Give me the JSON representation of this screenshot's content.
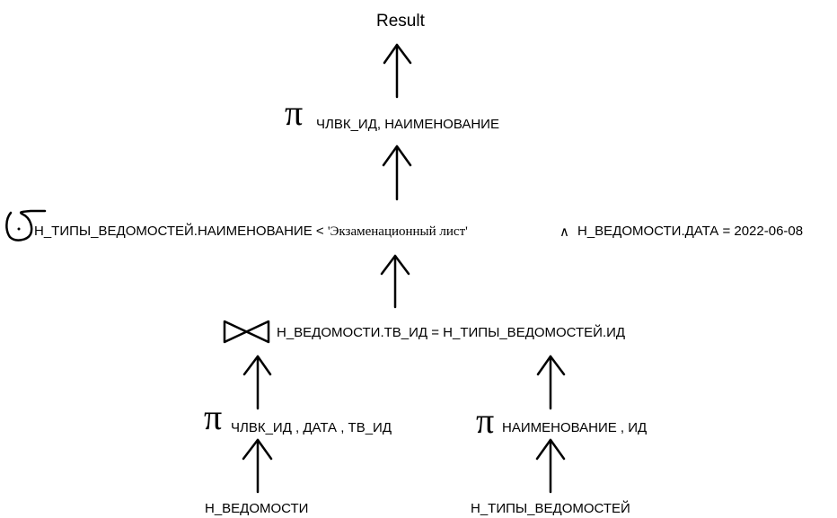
{
  "diagram": {
    "result": {
      "label": "Result"
    },
    "projection_top": {
      "symbol": "π",
      "attributes": "ЧЛВК_ИД, НАИМЕНОВАНИЕ"
    },
    "selection": {
      "symbol_name": "sigma-icon",
      "left_condition": "Н_ТИПЫ_ВЕДОМОСТЕЙ.НАИМЕНОВАНИЕ < 'Экзаменационный лист'",
      "operator": "∧",
      "right_condition": "Н_ВЕДОМОСТИ.ДАТА = 2022-06-08"
    },
    "join": {
      "symbol_name": "bowtie-join-icon",
      "condition": "Н_ВЕДОМОСТИ.ТВ_ИД = Н_ТИПЫ_ВЕДОМОСТЕЙ.ИД"
    },
    "projection_left": {
      "symbol": "π",
      "attributes": "ЧЛВК_ИД , ДАТА , ТВ_ИД"
    },
    "projection_right": {
      "symbol": "π",
      "attributes": "НАИМЕНОВАНИЕ , ИД"
    },
    "table_left": {
      "label": "Н_ВЕДОМОСТИ"
    },
    "table_right": {
      "label": "Н_ТИПЫ_ВЕДОМОСТЕЙ"
    },
    "arrow_icon": "arrow-up-icon"
  }
}
